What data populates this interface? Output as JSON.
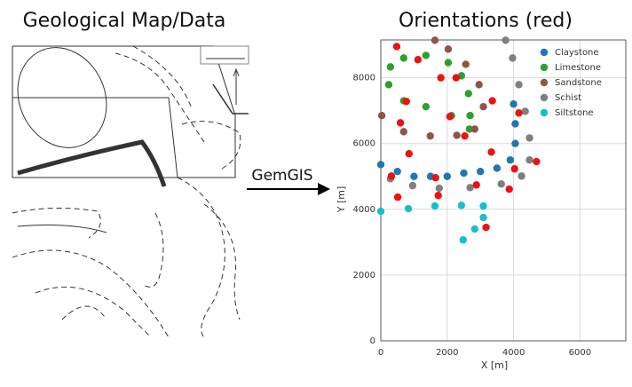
{
  "left_title": "Geological Map/Data",
  "arrow_label": "GemGIS",
  "chart_data": {
    "type": "scatter",
    "title": "Orientations (red)",
    "x_label": "X [m]",
    "y_label": "Y [m]",
    "xlim": [
      0,
      7380
    ],
    "ylim": [
      0,
      9150
    ],
    "xticks": [
      0,
      2000,
      4000,
      6000
    ],
    "yticks": [
      0,
      2000,
      4000,
      6000,
      8000
    ],
    "grid": true,
    "legend": "upper right",
    "series": [
      {
        "name": "Claystone",
        "color": "#1f77b4",
        "x": [
          0,
          500,
          1000,
          1500,
          2000,
          2500,
          3000,
          3500,
          3900,
          4050,
          4050,
          4000
        ],
        "y": [
          5360,
          5150,
          5000,
          5000,
          5000,
          5100,
          5150,
          5250,
          5500,
          6000,
          6600,
          7200
        ]
      },
      {
        "name": "Limestone",
        "color": "#2ca02c",
        "x": [
          2130,
          1360,
          690,
          240,
          290,
          690,
          1360,
          2030,
          2430,
          2640,
          2690,
          2670
        ],
        "y": [
          6850,
          7120,
          7300,
          7790,
          8330,
          8600,
          8680,
          8460,
          8060,
          7520,
          6850,
          6440
        ]
      },
      {
        "name": "Sandstone",
        "color": "#8c564b",
        "x": [
          30,
          690,
          1490,
          2290,
          2830,
          3090,
          2960,
          2560,
          2030,
          1630
        ],
        "y": [
          6850,
          6360,
          6230,
          6250,
          6440,
          7120,
          7790,
          8410,
          8870,
          9140
        ]
      },
      {
        "name": "Schist",
        "color": "#7f7f7f",
        "x": [
          3760,
          3970,
          4160,
          4350,
          4480,
          4480,
          4240,
          3630,
          2690,
          1760,
          960,
          290
        ],
        "y": [
          9140,
          8600,
          7790,
          6980,
          6170,
          5500,
          5010,
          4770,
          4660,
          4640,
          4720,
          4930
        ]
      },
      {
        "name": "Siltstone",
        "color": "#17becf",
        "x": [
          0,
          830,
          1630,
          2430,
          3090,
          3090,
          2830,
          2480
        ],
        "y": [
          3940,
          4020,
          4100,
          4120,
          4100,
          3750,
          3400,
          3070
        ]
      }
    ],
    "orientations": {
      "color": "#ee1111",
      "x": [
        480,
        1120,
        1810,
        2270,
        770,
        3360,
        4160,
        590,
        2080,
        2530,
        850,
        3330,
        4030,
        4690,
        320,
        1650,
        2880,
        3870,
        510,
        1730,
        3170
      ],
      "y": [
        8950,
        8550,
        8000,
        8000,
        7280,
        7300,
        6930,
        6630,
        6820,
        6230,
        5690,
        5740,
        5230,
        5450,
        5010,
        4960,
        4740,
        4610,
        4370,
        4420,
        3450
      ]
    }
  }
}
